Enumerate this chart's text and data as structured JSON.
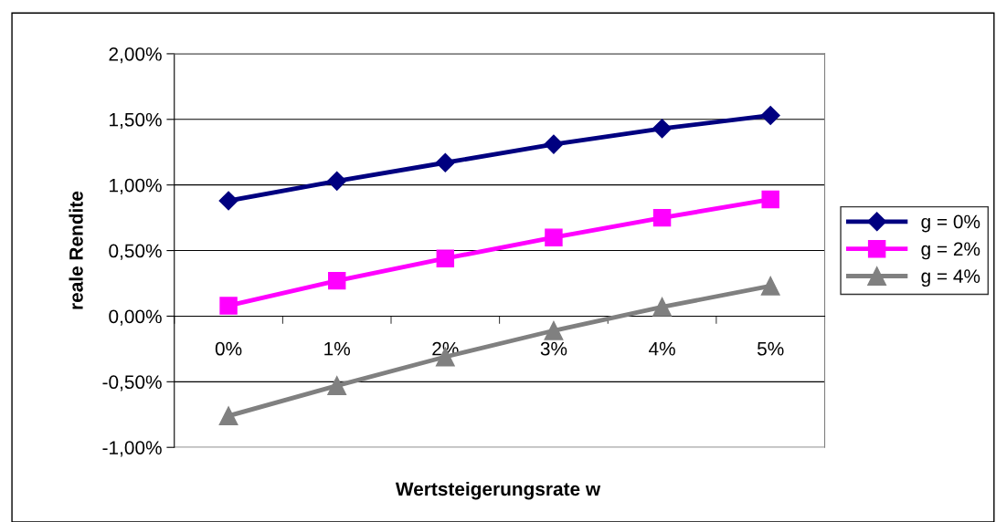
{
  "chart_data": {
    "type": "line",
    "xlabel": "Wertsteigerungsrate w",
    "ylabel": "reale Rendite",
    "categories": [
      "0%",
      "1%",
      "2%",
      "3%",
      "4%",
      "5%"
    ],
    "series": [
      {
        "name": "g = 0%",
        "color": "#000080",
        "marker": "diamond",
        "values": [
          0.88,
          1.03,
          1.17,
          1.31,
          1.43,
          1.53
        ]
      },
      {
        "name": "g = 2%",
        "color": "#ff00ff",
        "marker": "square",
        "values": [
          0.08,
          0.27,
          0.44,
          0.6,
          0.75,
          0.89
        ]
      },
      {
        "name": "g = 4%",
        "color": "#808080",
        "marker": "triangle",
        "values": [
          -0.76,
          -0.53,
          -0.31,
          -0.11,
          0.07,
          0.23
        ]
      }
    ],
    "ylim": [
      -1.0,
      2.0
    ],
    "yticks": [
      {
        "value": -1.0,
        "label": "-1,00%"
      },
      {
        "value": -0.5,
        "label": "-0,50%"
      },
      {
        "value": 0,
        "label": "0,00%"
      },
      {
        "value": 0.5,
        "label": "0,50%"
      },
      {
        "value": 1.0,
        "label": "1,00%"
      },
      {
        "value": 1.5,
        "label": "1,50%"
      },
      {
        "value": 2.0,
        "label": "2,00%"
      }
    ],
    "grid": "y",
    "legend": "right",
    "line_style": "solid"
  }
}
